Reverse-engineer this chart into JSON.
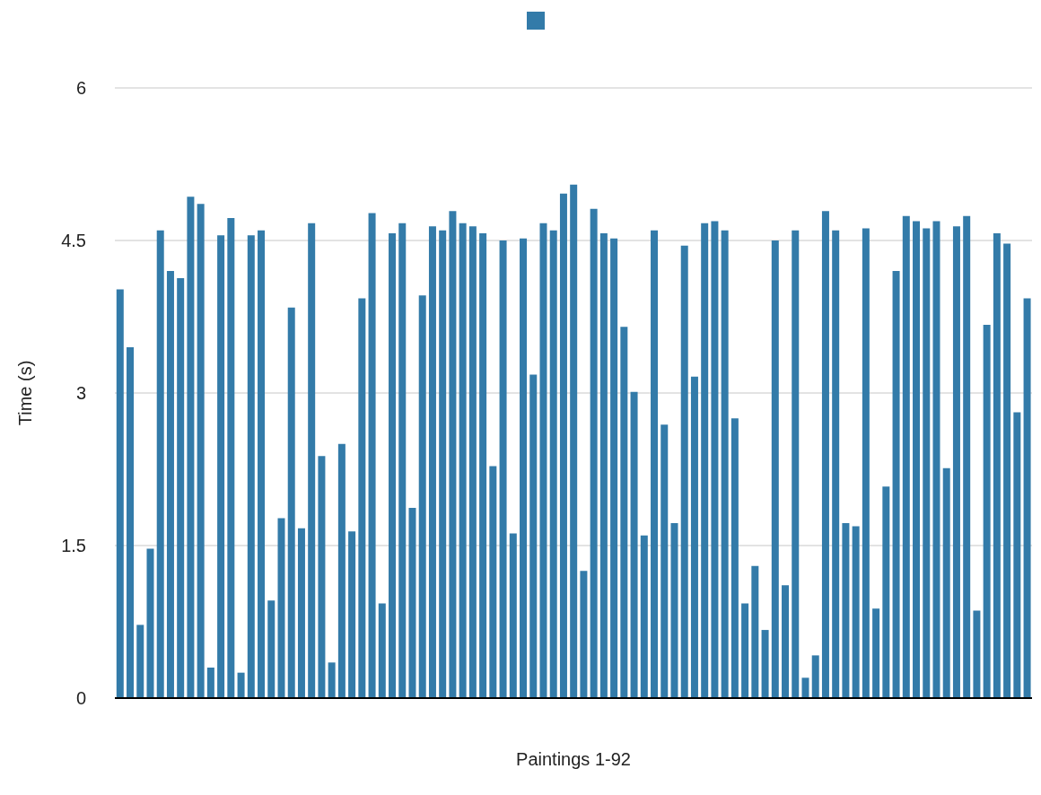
{
  "chart_data": {
    "type": "bar",
    "xlabel": "Paintings 1-92",
    "ylabel": "Time (s)",
    "categories": [
      null,
      null,
      null,
      null,
      null,
      null,
      null,
      null,
      null,
      null,
      null,
      null,
      null,
      null,
      null,
      null,
      null,
      null,
      null,
      null,
      null,
      null,
      null,
      null,
      null,
      null,
      null,
      null,
      null,
      null,
      null,
      null,
      null,
      null,
      null,
      null,
      null,
      null,
      null,
      null,
      null,
      null,
      null,
      null,
      null,
      null,
      null,
      null,
      null,
      null,
      null,
      null,
      null,
      null,
      null,
      null,
      null,
      null,
      null,
      null,
      null,
      null,
      null,
      null,
      null,
      null,
      null,
      null,
      null,
      null,
      null,
      null,
      null,
      null,
      null,
      null,
      null,
      null,
      null,
      null,
      null,
      null,
      null,
      null,
      null,
      null,
      null,
      null,
      null,
      null,
      null
    ],
    "series": [
      {
        "color": "#337ba9",
        "values": [
          4.02,
          3.45,
          0.72,
          1.47,
          4.6,
          4.2,
          4.13,
          4.93,
          4.86,
          0.3,
          4.55,
          4.72,
          0.25,
          4.55,
          4.6,
          0.96,
          1.77,
          3.84,
          1.67,
          4.67,
          2.38,
          0.35,
          2.5,
          1.64,
          3.93,
          4.77,
          0.93,
          4.57,
          4.67,
          1.87,
          3.96,
          4.64,
          4.6,
          4.79,
          4.67,
          4.64,
          4.57,
          2.28,
          4.5,
          1.62,
          4.52,
          3.18,
          4.67,
          4.6,
          4.96,
          5.05,
          1.25,
          4.81,
          4.57,
          4.52,
          3.65,
          3.01,
          1.6,
          4.6,
          2.69,
          1.72,
          4.45,
          3.16,
          4.67,
          4.69,
          4.6,
          2.75,
          0.93,
          1.3,
          0.67,
          4.5,
          1.11,
          4.6,
          0.2,
          0.42,
          4.79,
          4.6,
          1.72,
          1.69,
          4.62,
          0.88,
          2.08,
          4.2,
          4.74,
          4.69,
          4.62,
          4.69,
          2.26,
          4.64,
          4.74,
          0.86,
          3.67,
          4.57,
          4.47,
          2.81,
          3.93
        ]
      }
    ],
    "ylim": [
      0,
      6
    ],
    "yticks": [
      0,
      1.5,
      3,
      4.5,
      6
    ],
    "grid": "y"
  }
}
